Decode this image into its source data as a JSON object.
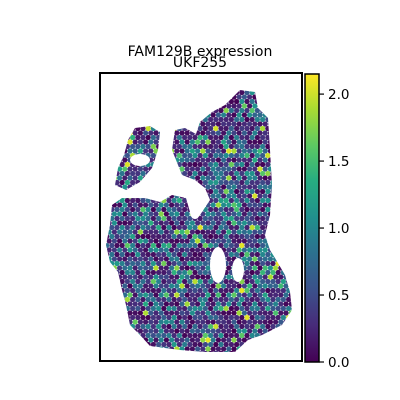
{
  "chart_data": {
    "type": "heatmap",
    "title_line1": "UKF255",
    "title_line2": "FAM129B expression",
    "xlabel": "",
    "ylabel": "",
    "colorbar": {
      "colormap": "viridis",
      "range": [
        0.0,
        2.15
      ],
      "ticks": [
        0.0,
        0.5,
        1.0,
        1.5,
        2.0
      ],
      "tick_labels": [
        "0.0",
        "0.5",
        "1.0",
        "1.5",
        "2.0"
      ],
      "low_color": "#440154",
      "high_color": "#fde725"
    },
    "value_distribution": {
      "dominant_range": [
        0.0,
        1.0
      ],
      "high_spots_max": 2.1
    },
    "grid": false,
    "legend": "none"
  }
}
